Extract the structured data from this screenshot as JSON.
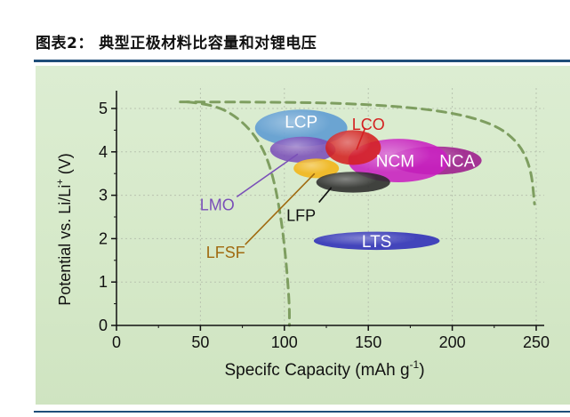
{
  "figure": {
    "title": "图表2：  典型正极材料比容量和对锂电压"
  },
  "chart_data": {
    "type": "scatter",
    "xlabel": "Specifc Capacity (mAh g",
    "xlabel_sup": "-1",
    "xlabel_end": ")",
    "ylabel": "Potential vs. Li/Li",
    "ylabel_sup": "+",
    "ylabel_end": " (V)",
    "xlim": [
      0,
      250
    ],
    "ylim": [
      0,
      5.2
    ],
    "x_ticks": [
      "0",
      "50",
      "100",
      "150",
      "200",
      "250"
    ],
    "x_tick_values": [
      0,
      50,
      100,
      150,
      200,
      250
    ],
    "y_ticks": [
      "0",
      "1",
      "2",
      "3",
      "4",
      "5"
    ],
    "y_tick_values": [
      0,
      1,
      2,
      3,
      4,
      5
    ],
    "grid": true,
    "regions": [
      {
        "name": "NCA",
        "label": "NCA",
        "cx": 190,
        "cy": 3.8,
        "w": 55,
        "h": 0.65,
        "color": "#9c1a8c"
      },
      {
        "name": "NCM",
        "label": "NCM",
        "cx": 168,
        "cy": 3.8,
        "w": 60,
        "h": 1.0,
        "color": "#c81fc0"
      },
      {
        "name": "LCP",
        "label": "LCP",
        "cx": 110,
        "cy": 4.55,
        "w": 55,
        "h": 0.85,
        "color": "#5b9ad3"
      },
      {
        "name": "LMO",
        "label": "LMO",
        "cx": 111,
        "cy": 4.05,
        "w": 39,
        "h": 0.6,
        "color": "#7a4fb8"
      },
      {
        "name": "LFSF",
        "label": "LFSF",
        "cx": 119,
        "cy": 3.62,
        "w": 27,
        "h": 0.45,
        "color": "#f3b416"
      },
      {
        "name": "LFP",
        "label": "LFP",
        "cx": 141,
        "cy": 3.3,
        "w": 44,
        "h": 0.48,
        "color": "#2a2a2a"
      },
      {
        "name": "LCO",
        "label": "LCO",
        "cx": 141,
        "cy": 4.1,
        "w": 33,
        "h": 0.8,
        "color": "#d42020"
      },
      {
        "name": "LTS",
        "label": "LTS",
        "cx": 155,
        "cy": 1.95,
        "w": 75,
        "h": 0.42,
        "color": "#2e2cb8"
      }
    ],
    "annotations": [
      {
        "text": "LMO",
        "x": 60,
        "y": 2.8,
        "color": "#7a4fb8",
        "target_x": 108,
        "target_y": 3.95
      },
      {
        "text": "LFSF",
        "x": 65,
        "y": 1.7,
        "color": "#a06a10",
        "target_x": 118,
        "target_y": 3.5
      },
      {
        "text": "LFP",
        "x": 110,
        "y": 2.55,
        "color": "#111111",
        "target_x": 128,
        "target_y": 3.18
      },
      {
        "text": "LCO",
        "x": 150,
        "y": 4.65,
        "color": "#d42020",
        "target_x": 143,
        "target_y": 4.05
      }
    ],
    "curves": [
      {
        "name": "inner-dashed-curve",
        "color": "#7e9e60",
        "points": [
          [
            42,
            5.15
          ],
          [
            58,
            5.1
          ],
          [
            74,
            4.75
          ],
          [
            86,
            4.2
          ],
          [
            93,
            3.5
          ],
          [
            98,
            2.5
          ],
          [
            101,
            1.5
          ],
          [
            103,
            0.5
          ],
          [
            103,
            0
          ]
        ]
      },
      {
        "name": "outer-dashed-curve",
        "color": "#7e9e60",
        "points": [
          [
            38,
            5.15
          ],
          [
            100,
            5.15
          ],
          [
            150,
            5.1
          ],
          [
            195,
            4.95
          ],
          [
            225,
            4.65
          ],
          [
            240,
            4.2
          ],
          [
            247,
            3.6
          ],
          [
            249,
            2.8
          ]
        ]
      }
    ]
  }
}
